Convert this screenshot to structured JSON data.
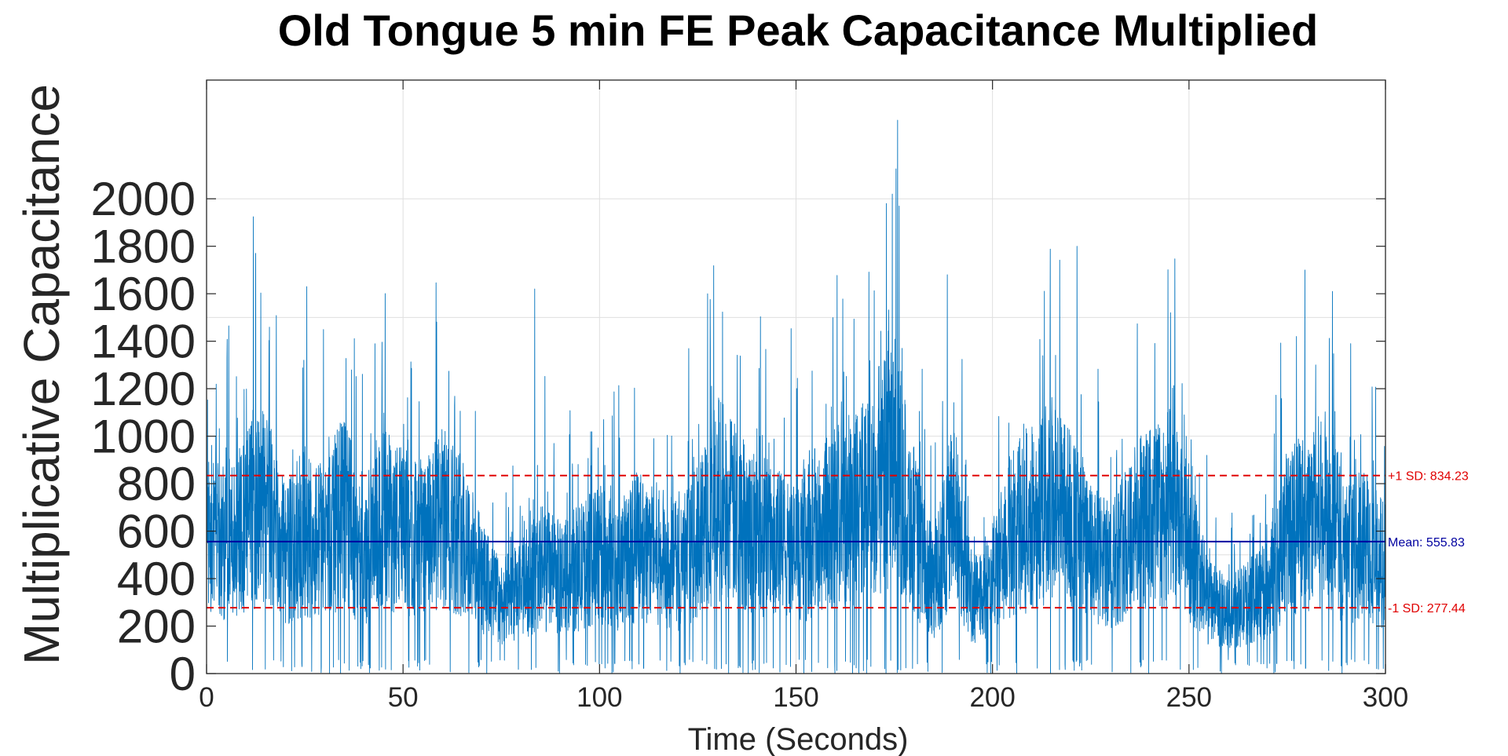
{
  "chart_data": {
    "type": "line",
    "title": "Old Tongue 5 min FE Peak Capacitance Multiplied",
    "xlabel": "Time (Seconds)",
    "ylabel": "Multiplicative Capacitance",
    "xlim": [
      0,
      300
    ],
    "ylim": [
      0,
      2500
    ],
    "x_ticks": [
      0,
      50,
      100,
      150,
      200,
      250,
      300
    ],
    "y_ticks": [
      0,
      200,
      400,
      600,
      800,
      1000,
      1200,
      1400,
      1600,
      1800,
      2000
    ],
    "grid": true,
    "colors": {
      "signal": "#0072BD",
      "mean": "#0000A0",
      "sd": "#E00000",
      "axes": "#262626",
      "grid": "#DFDFDF"
    },
    "series": [
      {
        "x": [
          0,
          5,
          10,
          15,
          20,
          25,
          30,
          35,
          40,
          45,
          50,
          55,
          60,
          65,
          70,
          75,
          80,
          85,
          90,
          95,
          100,
          105,
          110,
          115,
          120,
          125,
          130,
          135,
          140,
          145,
          150,
          155,
          160,
          165,
          170,
          175,
          180,
          185,
          190,
          195,
          200,
          205,
          210,
          215,
          220,
          225,
          230,
          235,
          240,
          245,
          250,
          255,
          260,
          265,
          270,
          275,
          280,
          285,
          290,
          295,
          300
        ],
        "y": [
          600,
          550,
          650,
          700,
          500,
          600,
          550,
          700,
          450,
          650,
          600,
          550,
          650,
          600,
          400,
          300,
          350,
          450,
          400,
          450,
          500,
          450,
          550,
          500,
          450,
          550,
          750,
          650,
          600,
          550,
          500,
          600,
          650,
          700,
          750,
          900,
          600,
          350,
          700,
          300,
          400,
          600,
          650,
          750,
          650,
          500,
          450,
          600,
          650,
          700,
          550,
          300,
          250,
          300,
          350,
          600,
          650,
          700,
          500,
          550,
          450
        ],
        "peaks": [
          {
            "x": 12.5,
            "y": 1770
          },
          {
            "x": 25.5,
            "y": 1630
          },
          {
            "x": 83.5,
            "y": 1620
          },
          {
            "x": 127.5,
            "y": 1600
          },
          {
            "x": 173.0,
            "y": 1980
          },
          {
            "x": 174.5,
            "y": 2020
          },
          {
            "x": 188.5,
            "y": 1680
          },
          {
            "x": 221.5,
            "y": 1800
          },
          {
            "x": 279.5,
            "y": 1700
          },
          {
            "x": 286.5,
            "y": 1610
          }
        ]
      }
    ],
    "mean": 555.83,
    "plus_sd": 834.23,
    "minus_sd": 277.44,
    "annotations": {
      "mean_label": "Mean: 555.83",
      "plus_sd_label": "+1 SD: 834.23",
      "minus_sd_label": "-1 SD: 277.44"
    }
  }
}
